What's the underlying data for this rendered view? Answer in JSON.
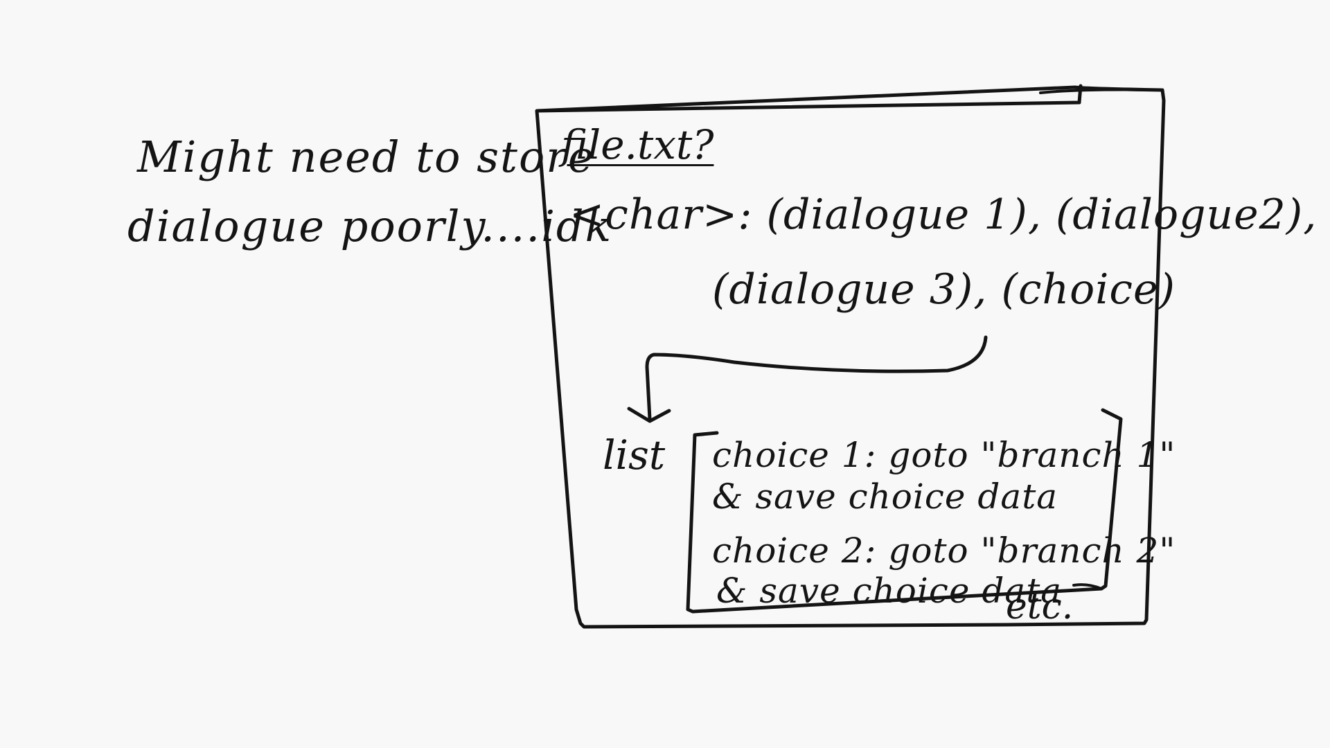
{
  "side_note": {
    "line1": "Might need to store",
    "line2": "dialogue poorly....idk"
  },
  "file_box": {
    "title": "file.txt?",
    "line1": "<char>: (dialogue 1), (dialogue2),",
    "line2": "(dialogue 3), (choice)"
  },
  "list_box": {
    "label": "list",
    "choice1_line1": "choice 1: goto \"branch 1\"",
    "choice1_line2": "& save choice data",
    "choice2_line1": "choice 2: goto \"branch 2\"",
    "choice2_line2": "& save choice data",
    "etc": "etc."
  },
  "colors": {
    "ink": "#141414",
    "paper": "#f8f8f8"
  }
}
